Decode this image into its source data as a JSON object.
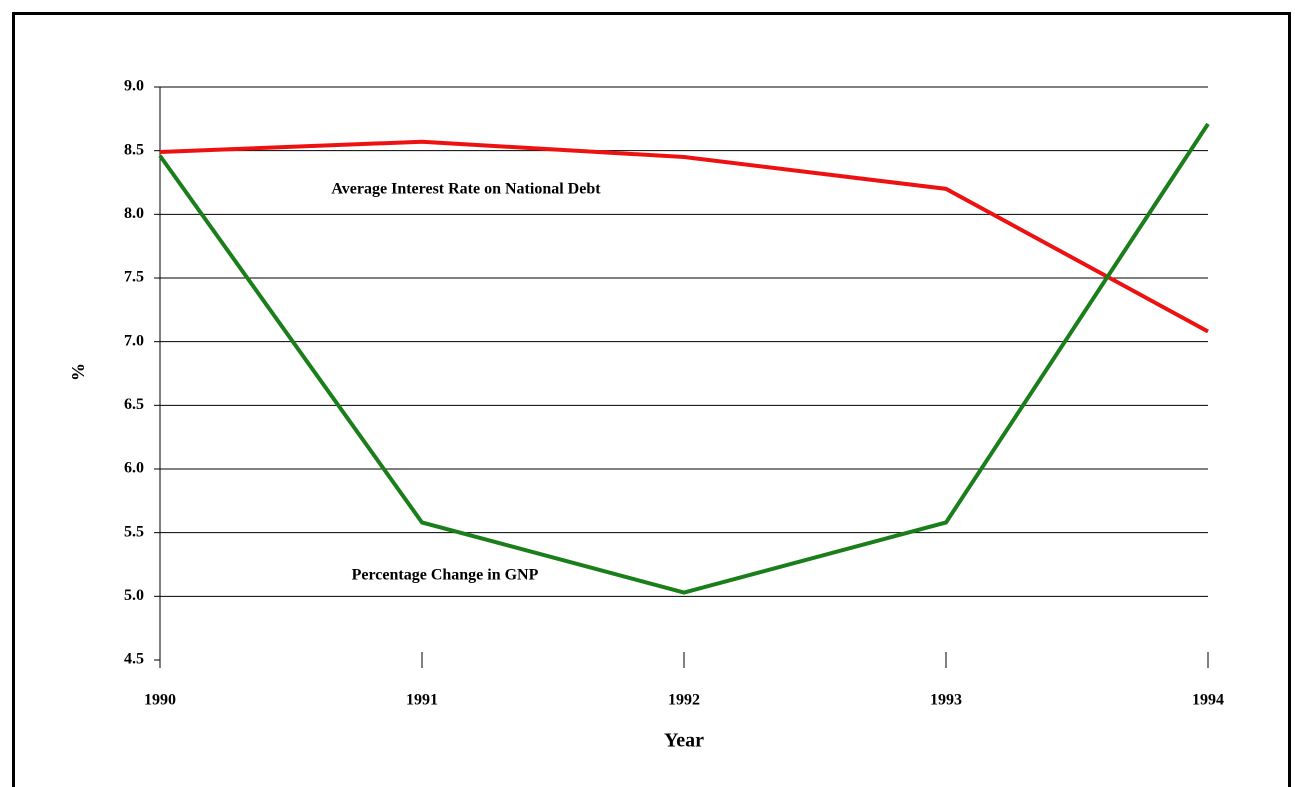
{
  "chart_data": {
    "type": "line",
    "x_label": "Year",
    "y_label": "%",
    "x": [
      1990,
      1991,
      1992,
      1993,
      1994
    ],
    "series": [
      {
        "name": "Average Interest Rate on National Debt",
        "color": "#ee1111",
        "values": [
          8.49,
          8.57,
          8.45,
          8.2,
          7.08
        ]
      },
      {
        "name": "Percentage Change in GNP",
        "color": "#1a7f1a",
        "values": [
          8.46,
          5.58,
          5.03,
          5.58,
          8.71
        ]
      }
    ],
    "xlim": [
      1990,
      1994
    ],
    "xticks": [
      1990,
      1991,
      1992,
      1993,
      1994
    ],
    "ylim": [
      4.5,
      9.0
    ],
    "yticks": [
      {
        "value": 4.5,
        "label": "4.5"
      },
      {
        "value": 5,
        "label": "5.0"
      },
      5.5,
      {
        "value": 6,
        "label": "6.0"
      },
      6.5,
      {
        "value": 7,
        "label": "7.0"
      },
      7.5,
      {
        "value": 8,
        "label": "8.0"
      },
      8.5,
      {
        "value": 9,
        "label": "9.0"
      }
    ],
    "grid": true
  }
}
